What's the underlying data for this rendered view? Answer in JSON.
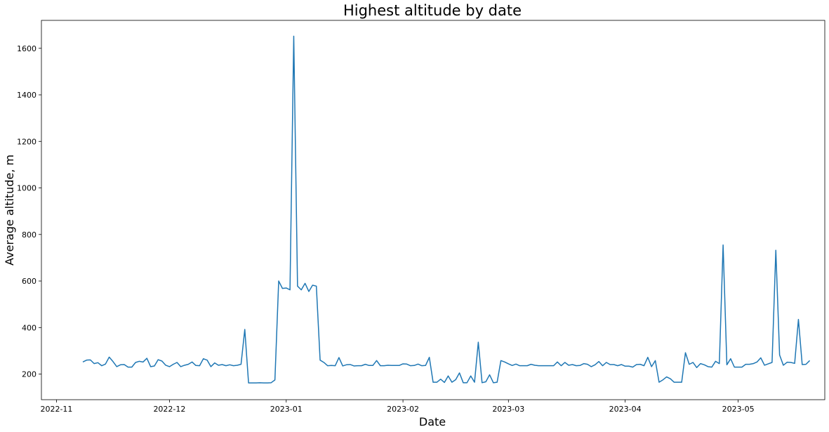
{
  "chart_data": {
    "type": "line",
    "title": "Highest altitude by date",
    "xlabel": "Date",
    "ylabel": "Average altitude, m",
    "x_ticks": [
      "2022-11",
      "2022-12",
      "2023-01",
      "2023-02",
      "2023-03",
      "2023-04",
      "2023-05"
    ],
    "y_ticks": [
      200,
      400,
      600,
      800,
      1000,
      1200,
      1400,
      1600
    ],
    "xlim": [
      "2022-10-28",
      "2023-05-24"
    ],
    "ylim": [
      90,
      1720
    ],
    "grid": false,
    "line_color": "#1f77b4",
    "series": [
      {
        "points": [
          [
            "2022-11-08",
            252
          ],
          [
            "2022-11-09",
            260
          ],
          [
            "2022-11-10",
            261
          ],
          [
            "2022-11-11",
            245
          ],
          [
            "2022-11-12",
            249
          ],
          [
            "2022-11-13",
            236
          ],
          [
            "2022-11-14",
            243
          ],
          [
            "2022-11-15",
            273
          ],
          [
            "2022-11-16",
            254
          ],
          [
            "2022-11-17",
            232
          ],
          [
            "2022-11-18",
            240
          ],
          [
            "2022-11-19",
            241
          ],
          [
            "2022-11-20",
            230
          ],
          [
            "2022-11-21",
            230
          ],
          [
            "2022-11-22",
            250
          ],
          [
            "2022-11-23",
            255
          ],
          [
            "2022-11-24",
            252
          ],
          [
            "2022-11-25",
            268
          ],
          [
            "2022-11-26",
            232
          ],
          [
            "2022-11-27",
            235
          ],
          [
            "2022-11-28",
            262
          ],
          [
            "2022-11-29",
            256
          ],
          [
            "2022-11-30",
            238
          ],
          [
            "2022-12-01",
            232
          ],
          [
            "2022-12-02",
            242
          ],
          [
            "2022-12-03",
            250
          ],
          [
            "2022-12-04",
            232
          ],
          [
            "2022-12-05",
            238
          ],
          [
            "2022-12-06",
            242
          ],
          [
            "2022-12-07",
            252
          ],
          [
            "2022-12-08",
            237
          ],
          [
            "2022-12-09",
            236
          ],
          [
            "2022-12-10",
            266
          ],
          [
            "2022-12-11",
            260
          ],
          [
            "2022-12-12",
            232
          ],
          [
            "2022-12-13",
            248
          ],
          [
            "2022-12-14",
            238
          ],
          [
            "2022-12-15",
            241
          ],
          [
            "2022-12-16",
            236
          ],
          [
            "2022-12-17",
            240
          ],
          [
            "2022-12-18",
            236
          ],
          [
            "2022-12-19",
            238
          ],
          [
            "2022-12-20",
            242
          ],
          [
            "2022-12-21",
            392
          ],
          [
            "2022-12-22",
            162
          ],
          [
            "2022-12-23",
            162
          ],
          [
            "2022-12-24",
            162
          ],
          [
            "2022-12-25",
            163
          ],
          [
            "2022-12-26",
            162
          ],
          [
            "2022-12-27",
            162
          ],
          [
            "2022-12-28",
            163
          ],
          [
            "2022-12-29",
            175
          ],
          [
            "2022-12-30",
            600
          ],
          [
            "2022-12-31",
            568
          ],
          [
            "2023-01-01",
            570
          ],
          [
            "2023-01-02",
            562
          ],
          [
            "2023-01-03",
            1652
          ],
          [
            "2023-01-04",
            578
          ],
          [
            "2023-01-05",
            562
          ],
          [
            "2023-01-06",
            590
          ],
          [
            "2023-01-07",
            555
          ],
          [
            "2023-01-08",
            582
          ],
          [
            "2023-01-09",
            578
          ],
          [
            "2023-01-10",
            260
          ],
          [
            "2023-01-11",
            250
          ],
          [
            "2023-01-12",
            236
          ],
          [
            "2023-01-13",
            237
          ],
          [
            "2023-01-14",
            236
          ],
          [
            "2023-01-15",
            271
          ],
          [
            "2023-01-16",
            235
          ],
          [
            "2023-01-17",
            240
          ],
          [
            "2023-01-18",
            241
          ],
          [
            "2023-01-19",
            235
          ],
          [
            "2023-01-20",
            236
          ],
          [
            "2023-01-21",
            236
          ],
          [
            "2023-01-22",
            242
          ],
          [
            "2023-01-23",
            237
          ],
          [
            "2023-01-24",
            237
          ],
          [
            "2023-01-25",
            258
          ],
          [
            "2023-01-26",
            236
          ],
          [
            "2023-01-27",
            236
          ],
          [
            "2023-01-28",
            238
          ],
          [
            "2023-01-29",
            237
          ],
          [
            "2023-01-30",
            237
          ],
          [
            "2023-01-31",
            237
          ],
          [
            "2023-02-01",
            244
          ],
          [
            "2023-02-02",
            243
          ],
          [
            "2023-02-03",
            236
          ],
          [
            "2023-02-04",
            237
          ],
          [
            "2023-02-05",
            243
          ],
          [
            "2023-02-06",
            236
          ],
          [
            "2023-02-07",
            237
          ],
          [
            "2023-02-08",
            272
          ],
          [
            "2023-02-09",
            165
          ],
          [
            "2023-02-10",
            165
          ],
          [
            "2023-02-11",
            178
          ],
          [
            "2023-02-12",
            164
          ],
          [
            "2023-02-13",
            192
          ],
          [
            "2023-02-14",
            165
          ],
          [
            "2023-02-15",
            176
          ],
          [
            "2023-02-16",
            205
          ],
          [
            "2023-02-17",
            163
          ],
          [
            "2023-02-18",
            163
          ],
          [
            "2023-02-19",
            192
          ],
          [
            "2023-02-20",
            165
          ],
          [
            "2023-02-21",
            337
          ],
          [
            "2023-02-22",
            163
          ],
          [
            "2023-02-23",
            167
          ],
          [
            "2023-02-24",
            197
          ],
          [
            "2023-02-25",
            163
          ],
          [
            "2023-02-26",
            165
          ],
          [
            "2023-02-27",
            258
          ],
          [
            "2023-02-28",
            252
          ],
          [
            "2023-03-01",
            244
          ],
          [
            "2023-03-02",
            237
          ],
          [
            "2023-03-03",
            243
          ],
          [
            "2023-03-04",
            236
          ],
          [
            "2023-03-05",
            236
          ],
          [
            "2023-03-06",
            236
          ],
          [
            "2023-03-07",
            242
          ],
          [
            "2023-03-08",
            238
          ],
          [
            "2023-03-09",
            236
          ],
          [
            "2023-03-10",
            236
          ],
          [
            "2023-03-11",
            236
          ],
          [
            "2023-03-12",
            236
          ],
          [
            "2023-03-13",
            236
          ],
          [
            "2023-03-14",
            252
          ],
          [
            "2023-03-15",
            236
          ],
          [
            "2023-03-16",
            250
          ],
          [
            "2023-03-17",
            238
          ],
          [
            "2023-03-18",
            241
          ],
          [
            "2023-03-19",
            236
          ],
          [
            "2023-03-20",
            237
          ],
          [
            "2023-03-21",
            245
          ],
          [
            "2023-03-22",
            242
          ],
          [
            "2023-03-23",
            232
          ],
          [
            "2023-03-24",
            240
          ],
          [
            "2023-03-25",
            254
          ],
          [
            "2023-03-26",
            236
          ],
          [
            "2023-03-27",
            250
          ],
          [
            "2023-03-28",
            241
          ],
          [
            "2023-03-29",
            241
          ],
          [
            "2023-03-30",
            236
          ],
          [
            "2023-03-31",
            241
          ],
          [
            "2023-04-01",
            234
          ],
          [
            "2023-04-02",
            234
          ],
          [
            "2023-04-03",
            230
          ],
          [
            "2023-04-04",
            241
          ],
          [
            "2023-04-05",
            242
          ],
          [
            "2023-04-06",
            236
          ],
          [
            "2023-04-07",
            272
          ],
          [
            "2023-04-08",
            232
          ],
          [
            "2023-04-09",
            258
          ],
          [
            "2023-04-10",
            165
          ],
          [
            "2023-04-11",
            175
          ],
          [
            "2023-04-12",
            188
          ],
          [
            "2023-04-13",
            180
          ],
          [
            "2023-04-14",
            165
          ],
          [
            "2023-04-15",
            165
          ],
          [
            "2023-04-16",
            165
          ],
          [
            "2023-04-17",
            292
          ],
          [
            "2023-04-18",
            242
          ],
          [
            "2023-04-19",
            250
          ],
          [
            "2023-04-20",
            228
          ],
          [
            "2023-04-21",
            245
          ],
          [
            "2023-04-22",
            240
          ],
          [
            "2023-04-23",
            232
          ],
          [
            "2023-04-24",
            230
          ],
          [
            "2023-04-25",
            255
          ],
          [
            "2023-04-26",
            245
          ],
          [
            "2023-04-27",
            755
          ],
          [
            "2023-04-28",
            240
          ],
          [
            "2023-04-29",
            266
          ],
          [
            "2023-04-30",
            230
          ],
          [
            "2023-05-01",
            230
          ],
          [
            "2023-05-02",
            230
          ],
          [
            "2023-05-03",
            242
          ],
          [
            "2023-05-04",
            242
          ],
          [
            "2023-05-05",
            245
          ],
          [
            "2023-05-06",
            252
          ],
          [
            "2023-05-07",
            270
          ],
          [
            "2023-05-08",
            238
          ],
          [
            "2023-05-09",
            244
          ],
          [
            "2023-05-10",
            250
          ],
          [
            "2023-05-11",
            732
          ],
          [
            "2023-05-12",
            282
          ],
          [
            "2023-05-13",
            238
          ],
          [
            "2023-05-14",
            251
          ],
          [
            "2023-05-15",
            250
          ],
          [
            "2023-05-16",
            246
          ],
          [
            "2023-05-17",
            435
          ],
          [
            "2023-05-18",
            241
          ],
          [
            "2023-05-19",
            242
          ],
          [
            "2023-05-20",
            258
          ]
        ]
      }
    ]
  }
}
